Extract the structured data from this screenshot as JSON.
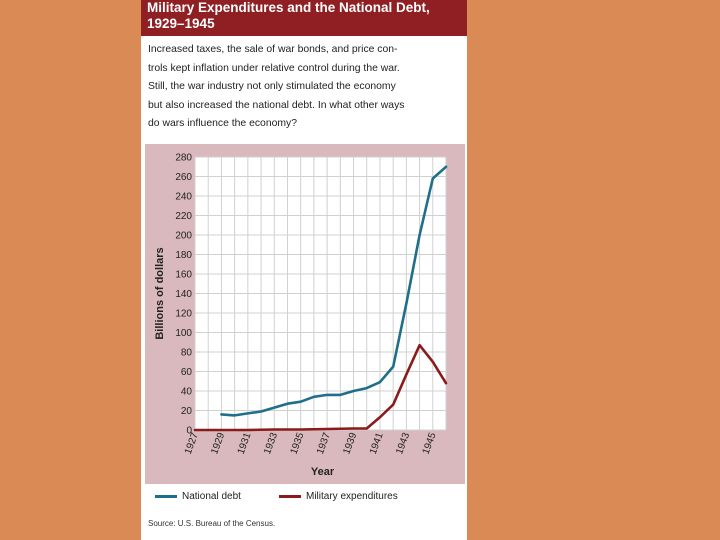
{
  "header": {
    "title_line1": "Military Expenditures and the National Debt,",
    "title_line2": "1929–1945"
  },
  "description": [
    "Increased taxes, the sale of war bonds, and price con-",
    "trols kept inflation under relative control during the war.",
    "Still, the war industry not only stimulated the economy",
    "but also increased the national debt. In what other ways",
    "do wars influence the economy?"
  ],
  "source": "Source: U.S. Bureau of the Census.",
  "colors": {
    "background": "#d98a55",
    "header": "#8f1f22",
    "plot_background": "#d9b9bd",
    "national_debt": "#1f6f8b",
    "military": "#8b1a1a"
  },
  "chart_data": {
    "type": "line",
    "xlabel": "Year",
    "ylabel": "Billions of dollars",
    "x_ticks": [
      "1927",
      "1929",
      "1931",
      "1933",
      "1935",
      "1937",
      "1939",
      "1941",
      "1943",
      "1945"
    ],
    "y_ticks": [
      "0",
      "20",
      "40",
      "60",
      "80",
      "100",
      "120",
      "140",
      "160",
      "180",
      "200",
      "220",
      "240",
      "260",
      "280"
    ],
    "xlim": [
      1927,
      1946
    ],
    "ylim": [
      0,
      280
    ],
    "grid": true,
    "legend_position": "bottom",
    "series": [
      {
        "name": "National debt",
        "color": "#1f6f8b",
        "x": [
          1929,
          1930,
          1931,
          1932,
          1933,
          1934,
          1935,
          1936,
          1937,
          1938,
          1939,
          1940,
          1941,
          1942,
          1943,
          1944,
          1945,
          1946
        ],
        "values": [
          16,
          15,
          17,
          19,
          23,
          27,
          29,
          34,
          36,
          36,
          40,
          43,
          49,
          65,
          130,
          200,
          258,
          270
        ]
      },
      {
        "name": "Military expenditures",
        "color": "#8b1a1a",
        "x": [
          1927,
          1929,
          1931,
          1933,
          1935,
          1937,
          1939,
          1940,
          1941,
          1942,
          1943,
          1944,
          1945,
          1946
        ],
        "values": [
          0,
          0,
          0,
          0.5,
          0.5,
          1,
          1.5,
          1.5,
          13,
          26,
          57,
          87,
          70,
          48
        ]
      }
    ]
  }
}
